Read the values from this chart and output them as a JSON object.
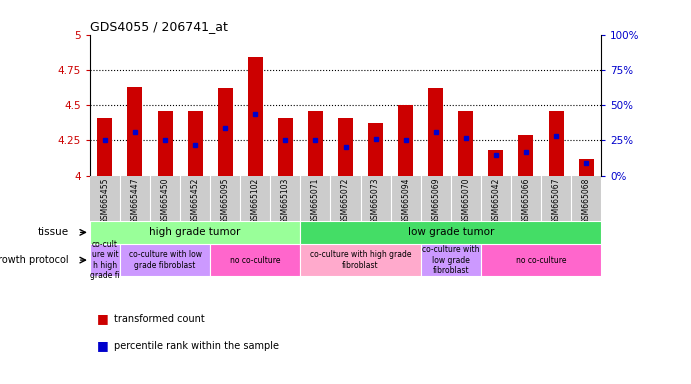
{
  "title": "GDS4055 / 206741_at",
  "samples": [
    "GSM665455",
    "GSM665447",
    "GSM665450",
    "GSM665452",
    "GSM665095",
    "GSM665102",
    "GSM665103",
    "GSM665071",
    "GSM665072",
    "GSM665073",
    "GSM665094",
    "GSM665069",
    "GSM665070",
    "GSM665042",
    "GSM665066",
    "GSM665067",
    "GSM665068"
  ],
  "red_values": [
    4.41,
    4.63,
    4.46,
    4.46,
    4.62,
    4.84,
    4.41,
    4.46,
    4.41,
    4.37,
    4.5,
    4.62,
    4.46,
    4.18,
    4.29,
    4.46,
    4.12
  ],
  "blue_values": [
    4.25,
    4.31,
    4.25,
    4.22,
    4.34,
    4.44,
    4.25,
    4.25,
    4.2,
    4.26,
    4.25,
    4.31,
    4.27,
    4.15,
    4.17,
    4.28,
    4.09
  ],
  "y_min": 4.0,
  "y_max": 5.0,
  "y_ticks_left": [
    4.0,
    4.25,
    4.5,
    4.75,
    5.0
  ],
  "y_ticks_right_vals": [
    0,
    25,
    50,
    75,
    100
  ],
  "dotted_lines": [
    4.25,
    4.5,
    4.75
  ],
  "bar_color": "#cc0000",
  "blue_color": "#0000cc",
  "tissue_row": [
    {
      "label": "high grade tumor",
      "start": 0,
      "end": 6,
      "color": "#99ff99"
    },
    {
      "label": "low grade tumor",
      "start": 7,
      "end": 16,
      "color": "#44dd66"
    }
  ],
  "protocol_row": [
    {
      "label": "co-cult\nure wit\nh high\ngrade fi",
      "start": 0,
      "end": 0,
      "color": "#cc99ff"
    },
    {
      "label": "co-culture with low\ngrade fibroblast",
      "start": 1,
      "end": 3,
      "color": "#cc99ff"
    },
    {
      "label": "no co-culture",
      "start": 4,
      "end": 6,
      "color": "#ff66cc"
    },
    {
      "label": "co-culture with high grade\nfibroblast",
      "start": 7,
      "end": 10,
      "color": "#ffaacc"
    },
    {
      "label": "co-culture with\nlow grade\nfibroblast",
      "start": 11,
      "end": 12,
      "color": "#cc99ff"
    },
    {
      "label": "no co-culture",
      "start": 13,
      "end": 16,
      "color": "#ff66cc"
    }
  ],
  "legend_red": "transformed count",
  "legend_blue": "percentile rank within the sample",
  "left_label_color": "#cc0000",
  "right_label_color": "#0000cc",
  "bar_width": 0.5,
  "sample_label_bg": "#cccccc",
  "plot_bg": "#ffffff"
}
